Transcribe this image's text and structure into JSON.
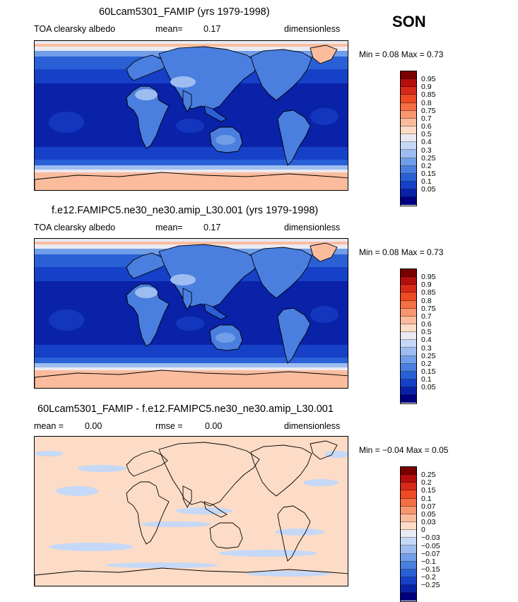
{
  "season": "SON",
  "colors": {
    "abs_scale": [
      "#7a0000",
      "#b50e0e",
      "#d62a1a",
      "#ee4a24",
      "#f46f45",
      "#f89670",
      "#fbbc9e",
      "#fcdcc6",
      "#eaeaf2",
      "#c5d8f7",
      "#9dbdf0",
      "#709ee8",
      "#4a7fe0",
      "#2a60d6",
      "#1640c7",
      "#0a22a8",
      "#00007e"
    ],
    "diff_scale": [
      "#7a0000",
      "#b50e0e",
      "#d62a1a",
      "#ee4a24",
      "#f46f45",
      "#f89670",
      "#fbbc9e",
      "#fcdcc6",
      "#eaeaf2",
      "#c5d8f7",
      "#9dbdf0",
      "#709ee8",
      "#4a7fe0",
      "#2a60d6",
      "#1640c7",
      "#0a22a8",
      "#00007e"
    ]
  },
  "panels": [
    {
      "title": "60Lcam5301_FAMIP (yrs 1979-1998)",
      "variable": "TOA clearsky albedo",
      "stat1_label": "mean=",
      "stat1_value": "0.17",
      "stat2_label": "",
      "stat2_value": "",
      "units": "dimensionless",
      "minmax": "Min =   0.08  Max =    0.73",
      "colorbar_labels": [
        "0.95",
        "0.9",
        "0.85",
        "0.8",
        "0.75",
        "0.7",
        "0.6",
        "0.5",
        "0.4",
        "0.3",
        "0.25",
        "0.2",
        "0.15",
        "0.1",
        "0.05"
      ]
    },
    {
      "title": "f.e12.FAMIPC5.ne30_ne30.amip_L30.001 (yrs 1979-1998)",
      "variable": "TOA clearsky albedo",
      "stat1_label": "mean=",
      "stat1_value": "0.17",
      "stat2_label": "",
      "stat2_value": "",
      "units": "dimensionless",
      "minmax": "Min =   0.08  Max =    0.73",
      "colorbar_labels": [
        "0.95",
        "0.9",
        "0.85",
        "0.8",
        "0.75",
        "0.7",
        "0.6",
        "0.5",
        "0.4",
        "0.3",
        "0.25",
        "0.2",
        "0.15",
        "0.1",
        "0.05"
      ]
    },
    {
      "title": "60Lcam5301_FAMIP - f.e12.FAMIPC5.ne30_ne30.amip_L30.001",
      "variable": "",
      "stat1_label": "mean =",
      "stat1_value": "0.00",
      "stat2_label": "rmse =",
      "stat2_value": "0.00",
      "units": "dimensionless",
      "minmax": "Min =  −0.04  Max =    0.05",
      "colorbar_labels": [
        "0.25",
        "0.2",
        "0.15",
        "0.1",
        "0.07",
        "0.05",
        "0.03",
        "0",
        "−0.03",
        "−0.05",
        "−0.07",
        "−0.1",
        "−0.15",
        "−0.2",
        "−0.25"
      ]
    }
  ],
  "chart_data": [
    {
      "type": "heatmap",
      "title": "60Lcam5301_FAMIP (yrs 1979-1998)",
      "variable": "TOA clearsky albedo",
      "units": "dimensionless",
      "mean": 0.17,
      "min": 0.08,
      "max": 0.73,
      "contour_levels": [
        0.05,
        0.1,
        0.15,
        0.2,
        0.25,
        0.3,
        0.4,
        0.5,
        0.6,
        0.7,
        0.75,
        0.8,
        0.85,
        0.9,
        0.95
      ]
    },
    {
      "type": "heatmap",
      "title": "f.e12.FAMIPC5.ne30_ne30.amip_L30.001 (yrs 1979-1998)",
      "variable": "TOA clearsky albedo",
      "units": "dimensionless",
      "mean": 0.17,
      "min": 0.08,
      "max": 0.73,
      "contour_levels": [
        0.05,
        0.1,
        0.15,
        0.2,
        0.25,
        0.3,
        0.4,
        0.5,
        0.6,
        0.7,
        0.75,
        0.8,
        0.85,
        0.9,
        0.95
      ]
    },
    {
      "type": "heatmap",
      "title": "60Lcam5301_FAMIP - f.e12.FAMIPC5.ne30_ne30.amip_L30.001",
      "units": "dimensionless",
      "mean": 0.0,
      "rmse": 0.0,
      "min": -0.04,
      "max": 0.05,
      "contour_levels": [
        -0.25,
        -0.2,
        -0.15,
        -0.1,
        -0.07,
        -0.05,
        -0.03,
        0,
        0.03,
        0.05,
        0.07,
        0.1,
        0.15,
        0.2,
        0.25
      ]
    }
  ]
}
